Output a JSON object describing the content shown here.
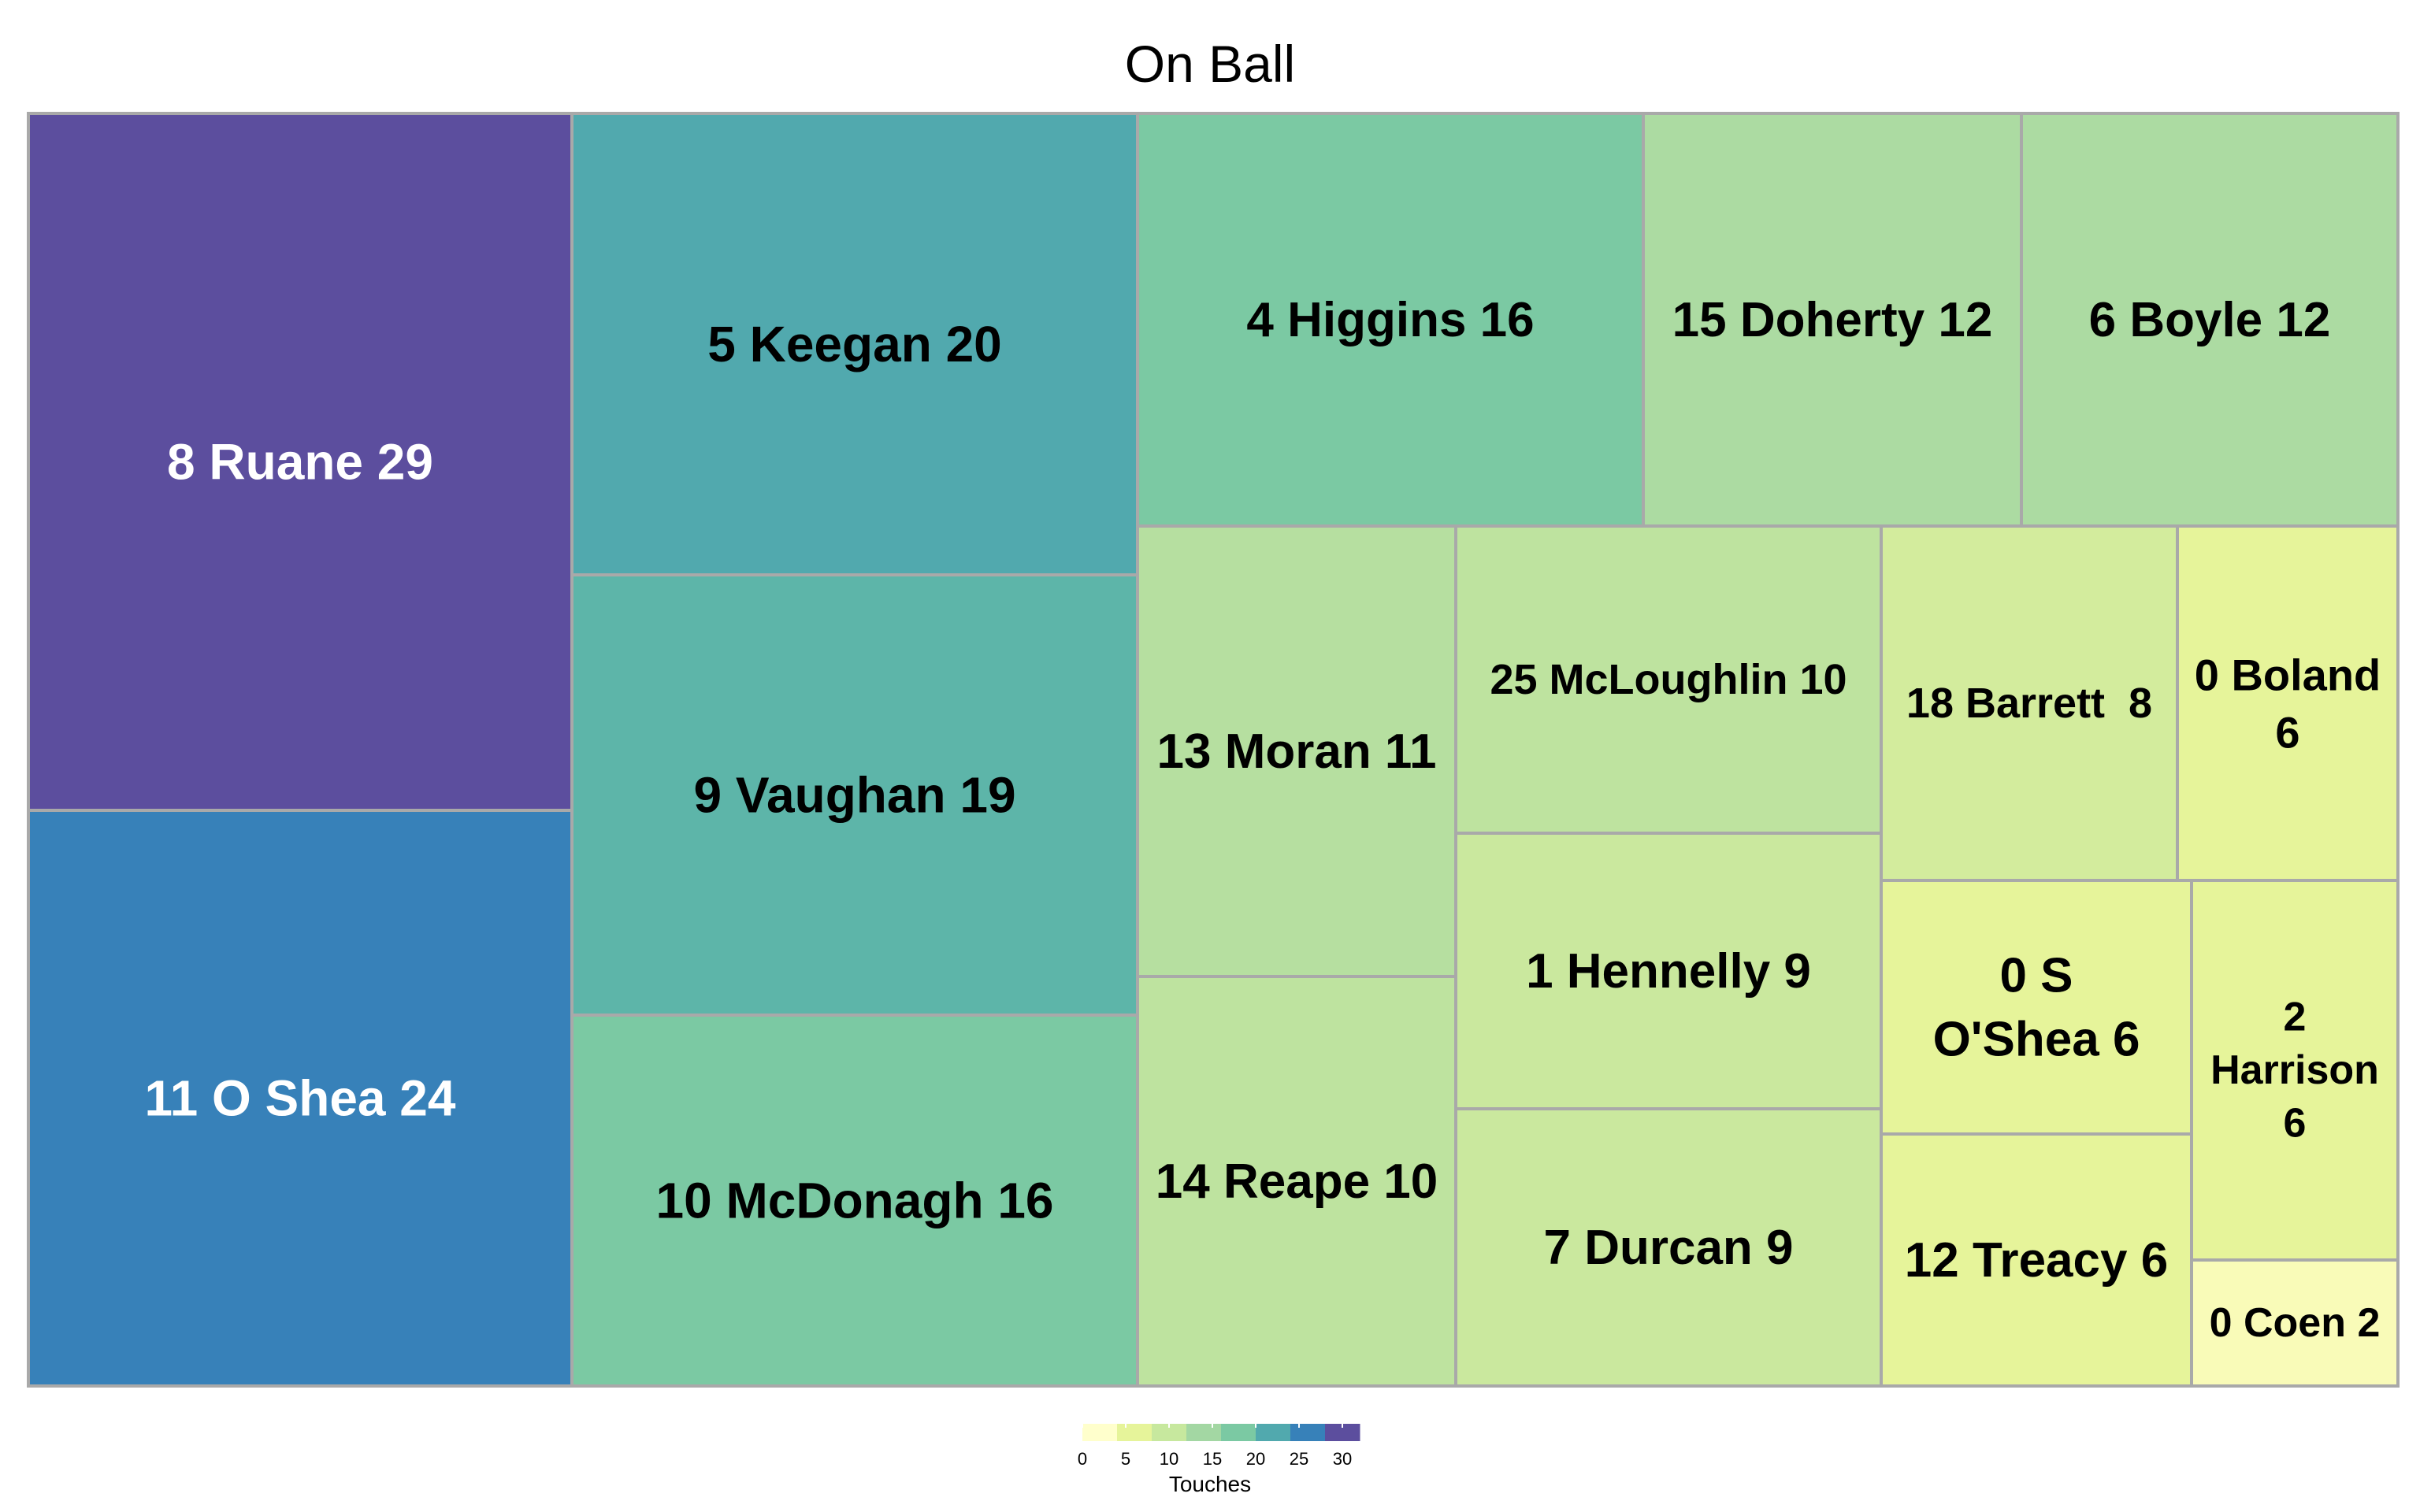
{
  "chart_data": {
    "type": "treemap",
    "title": "On Ball",
    "value_label": "Touches",
    "tiles": [
      {
        "label": "8 Ruane 29",
        "value": 29,
        "color": "#5c4e9e",
        "text_color": "#ffffff"
      },
      {
        "label": "11 O Shea 24",
        "value": 24,
        "color": "#3781b9",
        "text_color": "#ffffff"
      },
      {
        "label": "5 Keegan 20",
        "value": 20,
        "color": "#51a9ae",
        "text_color": "#000000"
      },
      {
        "label": "9 Vaughan 19",
        "value": 19,
        "color": "#5db5a9",
        "text_color": "#000000"
      },
      {
        "label": "10 McDonagh 16",
        "value": 16,
        "color": "#7bc9a3",
        "text_color": "#000000"
      },
      {
        "label": "4 Higgins 16",
        "value": 16,
        "color": "#7bc9a3",
        "text_color": "#000000"
      },
      {
        "label": "15 Doherty 12",
        "value": 12,
        "color": "#acdba2",
        "text_color": "#000000"
      },
      {
        "label": "6 Boyle 12",
        "value": 12,
        "color": "#acdba2",
        "text_color": "#000000"
      },
      {
        "label": "13 Moran 11",
        "value": 11,
        "color": "#b6dfa0",
        "text_color": "#000000"
      },
      {
        "label": "14 Reape 10",
        "value": 10,
        "color": "#bee39f",
        "text_color": "#000000"
      },
      {
        "label": "25 McLoughlin 10",
        "value": 10,
        "color": "#bee39f",
        "text_color": "#000000"
      },
      {
        "label": "1 Hennelly 9",
        "value": 9,
        "color": "#cae89e",
        "text_color": "#000000"
      },
      {
        "label": "7 Durcan 9",
        "value": 9,
        "color": "#cae89e",
        "text_color": "#000000"
      },
      {
        "label": "18 Barrett  8",
        "value": 8,
        "color": "#d3ec9d",
        "text_color": "#000000"
      },
      {
        "label": "0 Boland 6",
        "lines": [
          "0 Boland",
          "6"
        ],
        "value": 6,
        "color": "#e6f49a",
        "text_color": "#000000"
      },
      {
        "label": "0 S O'Shea 6",
        "lines": [
          "0 S",
          "O'Shea 6"
        ],
        "value": 6,
        "color": "#e6f49a",
        "text_color": "#000000"
      },
      {
        "label": "2 Harrison 6",
        "lines": [
          "2",
          "Harrison",
          "6"
        ],
        "value": 6,
        "color": "#e6f49a",
        "text_color": "#000000"
      },
      {
        "label": "12 Treacy 6",
        "value": 6,
        "color": "#e6f49a",
        "text_color": "#000000"
      },
      {
        "label": "0 Coen 2",
        "value": 2,
        "color": "#f9fbb8",
        "text_color": "#000000"
      }
    ],
    "legend": {
      "title": "Touches",
      "placement": "bottom-center",
      "range": [
        0,
        32
      ],
      "ticks": [
        "0",
        "5",
        "10",
        "15",
        "20",
        "25",
        "30"
      ],
      "tick_values": [
        0,
        5,
        10,
        15,
        20,
        25,
        30
      ],
      "colors": [
        "#ffffcc",
        "#e6f49a",
        "#c7e89e",
        "#a3d7a3",
        "#7bc9a3",
        "#51a9ae",
        "#3781b9",
        "#5c4e9e"
      ]
    }
  }
}
